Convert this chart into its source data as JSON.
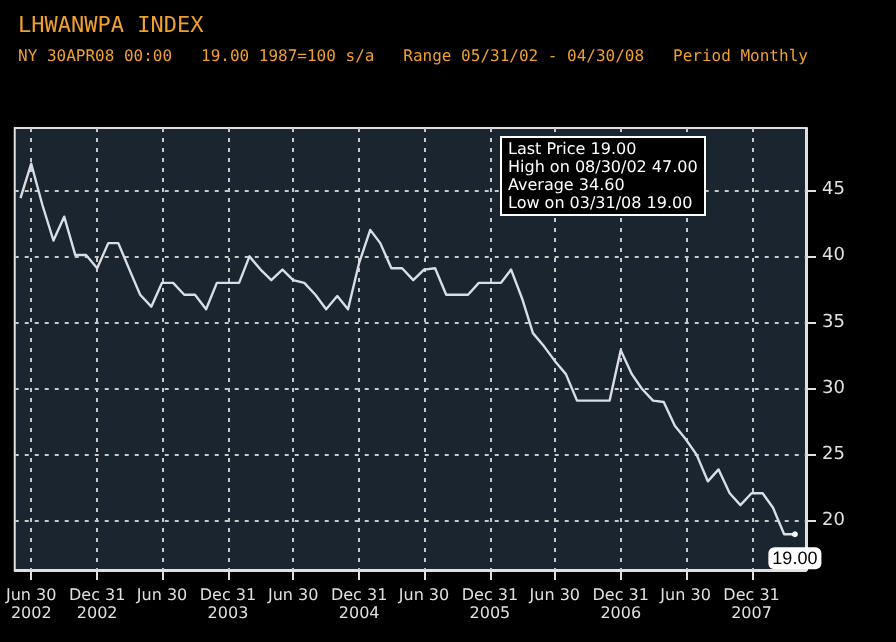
{
  "chart_data": {
    "type": "line",
    "title": "LHWANWPA INDEX",
    "subtitle": "NY 30APR08 00:00   19.00 1987=100 s/a   Range 05/31/02 - 04/30/08   Period Monthly",
    "x": [
      "2002-05-31",
      "2002-06-30",
      "2002-07-31",
      "2002-08-31",
      "2002-09-30",
      "2002-10-31",
      "2002-11-30",
      "2002-12-31",
      "2003-01-31",
      "2003-02-28",
      "2003-03-31",
      "2003-04-30",
      "2003-05-31",
      "2003-06-30",
      "2003-07-31",
      "2003-08-31",
      "2003-09-30",
      "2003-10-31",
      "2003-11-30",
      "2003-12-31",
      "2004-01-31",
      "2004-02-29",
      "2004-03-31",
      "2004-04-30",
      "2004-05-31",
      "2004-06-30",
      "2004-07-31",
      "2004-08-31",
      "2004-09-30",
      "2004-10-31",
      "2004-11-30",
      "2004-12-31",
      "2005-01-31",
      "2005-02-28",
      "2005-03-31",
      "2005-04-30",
      "2005-05-31",
      "2005-06-30",
      "2005-07-31",
      "2005-08-31",
      "2005-09-30",
      "2005-10-31",
      "2005-11-30",
      "2005-12-31",
      "2006-01-31",
      "2006-02-28",
      "2006-03-31",
      "2006-04-30",
      "2006-05-31",
      "2006-06-30",
      "2006-07-31",
      "2006-08-31",
      "2006-09-30",
      "2006-10-31",
      "2006-11-30",
      "2006-12-31",
      "2007-01-31",
      "2007-02-28",
      "2007-03-31",
      "2007-04-30",
      "2007-05-31",
      "2007-06-30",
      "2007-07-31",
      "2007-08-31",
      "2007-09-30",
      "2007-10-31",
      "2007-11-30",
      "2007-12-31",
      "2008-01-31",
      "2008-02-29",
      "2008-03-31",
      "2008-04-30"
    ],
    "series": [
      {
        "color": "#d8dde6",
        "values": [
          44.4,
          47,
          43.9,
          41.2,
          43,
          40.1,
          40.1,
          39.1,
          41,
          41,
          39,
          37.1,
          36.2,
          38,
          38,
          37.1,
          37.1,
          36,
          38,
          38,
          38,
          40,
          39,
          38.2,
          39,
          38.2,
          38,
          37.1,
          36,
          37,
          36,
          39.5,
          42,
          41,
          39.1,
          39.1,
          38.2,
          39,
          39.1,
          37.1,
          37.1,
          37.1,
          38,
          38,
          38,
          39,
          36.8,
          34.2,
          33.2,
          32.1,
          31.1,
          29.1,
          29.1,
          29.1,
          29.1,
          32.9,
          31.1,
          30,
          29.1,
          29,
          27.2,
          26.2,
          25,
          23,
          23.9,
          22.1,
          21.2,
          22.1,
          22.1,
          21,
          19,
          19
        ]
      }
    ],
    "xlim": [
      "2002-05-15",
      "2008-05-31"
    ],
    "xticks": [
      {
        "value": "2002-06-30",
        "label": "Jun 30\n2002"
      },
      {
        "value": "2002-12-31",
        "label": "Dec 31\n2002"
      },
      {
        "value": "2003-06-30",
        "label": "Jun 30"
      },
      {
        "value": "2003-12-31",
        "label": "Dec 31\n2003"
      },
      {
        "value": "2004-06-30",
        "label": "Jun 30"
      },
      {
        "value": "2004-12-31",
        "label": "Dec 31\n2004"
      },
      {
        "value": "2005-06-30",
        "label": "Jun 30"
      },
      {
        "value": "2005-12-31",
        "label": "Dec 31\n2005"
      },
      {
        "value": "2006-06-30",
        "label": "Jun 30"
      },
      {
        "value": "2006-12-31",
        "label": "Dec 31\n2006"
      },
      {
        "value": "2007-06-30",
        "label": "Jun 30"
      },
      {
        "value": "2007-12-31",
        "label": "Dec 31\n2007"
      }
    ],
    "ylim": [
      16.3,
      49.7
    ],
    "yticks": [
      20,
      25,
      30,
      35,
      40,
      45
    ],
    "grid": true,
    "marker": "none",
    "line_style": "solid",
    "annotations": [
      "Last Price 19.00",
      "High on 08/30/02 47.00",
      "Average 34.60",
      "Low on 03/31/08 19.00",
      {
        "text": "19.00",
        "x": "2008-04-30",
        "y": 19
      }
    ]
  }
}
